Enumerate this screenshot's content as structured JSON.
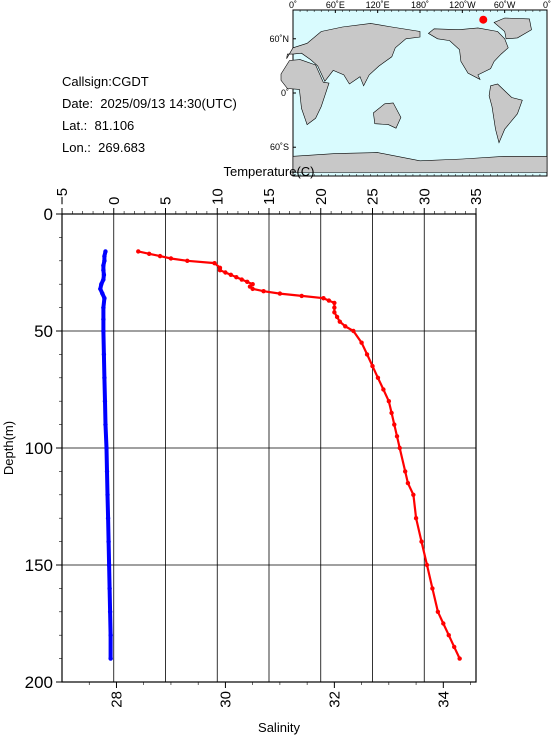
{
  "info": {
    "callsign": "Callsign:CGDT",
    "date": "Date:  2025/09/13 14:30(UTC)",
    "lat": "Lat.:  81.106",
    "lon": "Lon.:  269.683"
  },
  "map": {
    "top_ticks": [
      "0˚",
      "60˚E",
      "120˚E",
      "180˚",
      "120˚W",
      "60˚W",
      "0˚"
    ],
    "left_ticks": [
      "60˚N",
      "0˚",
      "60˚S"
    ],
    "ocean_color": "#d9fbfe",
    "land_color": "#c8c8c8",
    "marker_color": "#ff0000"
  },
  "chart_data": {
    "type": "line",
    "ylabel": "Depth(m)",
    "ylim": [
      200,
      0
    ],
    "yticks": [
      0,
      50,
      100,
      150,
      200
    ],
    "top_axis": {
      "label": "Temperature(C)",
      "lim": [
        -5,
        35
      ],
      "ticks": [
        "−5",
        "0",
        "5",
        "10",
        "15",
        "20",
        "25",
        "30",
        "35"
      ]
    },
    "bottom_axis": {
      "label": "Salinity",
      "lim": [
        27,
        34.6
      ],
      "ticks": [
        "28",
        "30",
        "32",
        "34"
      ]
    },
    "grid": true,
    "series": [
      {
        "color": "#0000ff",
        "axis": "top",
        "points": [
          [
            -0.8,
            16
          ],
          [
            -0.9,
            18
          ],
          [
            -0.9,
            20
          ],
          [
            -1.0,
            22
          ],
          [
            -1.0,
            24
          ],
          [
            -0.95,
            26
          ],
          [
            -1.0,
            28
          ],
          [
            -1.2,
            30
          ],
          [
            -1.3,
            32
          ],
          [
            -1.1,
            34
          ],
          [
            -0.9,
            36
          ],
          [
            -1.0,
            40
          ],
          [
            -1.0,
            45
          ],
          [
            -1.0,
            50
          ],
          [
            -0.95,
            60
          ],
          [
            -0.9,
            70
          ],
          [
            -0.85,
            80
          ],
          [
            -0.8,
            90
          ],
          [
            -0.7,
            100
          ],
          [
            -0.65,
            110
          ],
          [
            -0.6,
            120
          ],
          [
            -0.55,
            130
          ],
          [
            -0.5,
            140
          ],
          [
            -0.45,
            150
          ],
          [
            -0.4,
            160
          ],
          [
            -0.35,
            170
          ],
          [
            -0.3,
            180
          ],
          [
            -0.3,
            190
          ]
        ]
      },
      {
        "color": "#ff0000",
        "axis": "bottom",
        "points": [
          [
            28.4,
            16
          ],
          [
            28.6,
            17
          ],
          [
            28.8,
            18
          ],
          [
            29.0,
            19
          ],
          [
            29.3,
            20
          ],
          [
            29.8,
            21
          ],
          [
            29.9,
            23
          ],
          [
            29.9,
            24
          ],
          [
            30.0,
            25
          ],
          [
            30.1,
            26
          ],
          [
            30.2,
            27
          ],
          [
            30.3,
            28
          ],
          [
            30.4,
            29
          ],
          [
            30.5,
            30
          ],
          [
            30.45,
            31
          ],
          [
            30.5,
            32
          ],
          [
            30.7,
            33
          ],
          [
            31.0,
            34
          ],
          [
            31.4,
            35
          ],
          [
            31.8,
            36
          ],
          [
            31.9,
            37
          ],
          [
            32.0,
            38
          ],
          [
            32.0,
            40
          ],
          [
            32.0,
            42
          ],
          [
            32.05,
            44
          ],
          [
            32.1,
            46
          ],
          [
            32.2,
            48
          ],
          [
            32.35,
            50
          ],
          [
            32.5,
            55
          ],
          [
            32.6,
            60
          ],
          [
            32.7,
            65
          ],
          [
            32.8,
            70
          ],
          [
            32.9,
            75
          ],
          [
            33.0,
            80
          ],
          [
            33.05,
            85
          ],
          [
            33.1,
            90
          ],
          [
            33.15,
            95
          ],
          [
            33.2,
            100
          ],
          [
            33.3,
            110
          ],
          [
            33.35,
            115
          ],
          [
            33.45,
            120
          ],
          [
            33.5,
            130
          ],
          [
            33.6,
            140
          ],
          [
            33.7,
            150
          ],
          [
            33.8,
            160
          ],
          [
            33.9,
            170
          ],
          [
            34.0,
            175
          ],
          [
            34.1,
            180
          ],
          [
            34.2,
            185
          ],
          [
            34.3,
            190
          ]
        ]
      }
    ]
  }
}
